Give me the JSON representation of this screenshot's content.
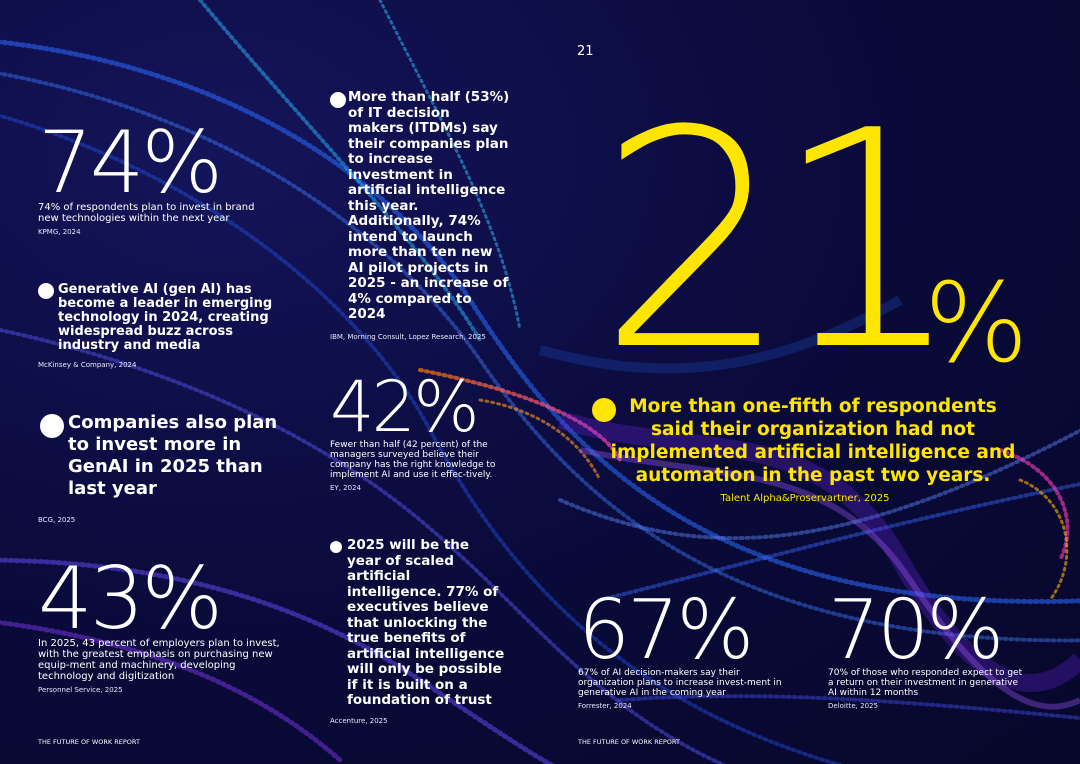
{
  "page_number": "21",
  "footer_left": "THE FUTURE OF WORK REPORT",
  "footer_right": "THE FUTURE OF WORK REPORT",
  "stats": {
    "s74": {
      "value": "74%",
      "desc": "74% of respondents plan to invest in brand new technologies within the next year",
      "source": "KPMG, 2024"
    },
    "s42": {
      "value": "42%",
      "desc": "Fewer than half (42 percent) of the managers surveyed believe their company has the right knowledge to implement AI and use it effec-tively.",
      "source": "EY, 2024"
    },
    "s43": {
      "value": "43%",
      "desc": "In 2025, 43 percent of employers plan to invest, with the greatest emphasis on purchasing new equip-ment and machinery, developing technology and digitization",
      "source": "Personnel Service, 2025"
    },
    "s67": {
      "value": "67%",
      "desc": "67% of AI decision-makers say their organization plans to increase invest-ment in generative AI in the coming year",
      "source": "Forrester, 2024"
    },
    "s70": {
      "value": "70%",
      "desc": "70% of those who responded expect to get a return on their investment in generative AI within 12 months",
      "source": "Deloitte, 2025"
    }
  },
  "bullets": {
    "b_genai": {
      "text": "Generative AI (gen AI) has become a leader in emerging technology in 2024, creating widespread buzz across industry and media",
      "source": "McKinsey & Company, 2024"
    },
    "b_companies": {
      "text": "Companies also plan to invest more in GenAI in 2025 than last year",
      "source": "BCG, 2025"
    },
    "b_itdm": {
      "text": "More than half (53%) of IT decision makers (ITDMs) say their companies plan to increase investment in artificial intelligence this year. Additionally, 74% intend to launch more than ten new AI pilot projects in 2025 - an increase of 4% compared to 2024",
      "source": "IBM, Morning Consult, Lopez Research, 2025"
    },
    "b_2025": {
      "text": "2025 will be the year of scaled artificial intelligence. 77% of executives believe that unlocking the true benefits of artificial intelligence will only be possible if it is built on a foundation of trust",
      "source": "Accenture, 2025"
    }
  },
  "hero": {
    "number": "21",
    "percent_sign": "%",
    "text": "More than one-fifth of respondents said their organization had not implemented artificial intelligence and automation in the past two years.",
    "source": "Talent Alpha&Proservartner, 2025",
    "color": "#ffe600"
  }
}
